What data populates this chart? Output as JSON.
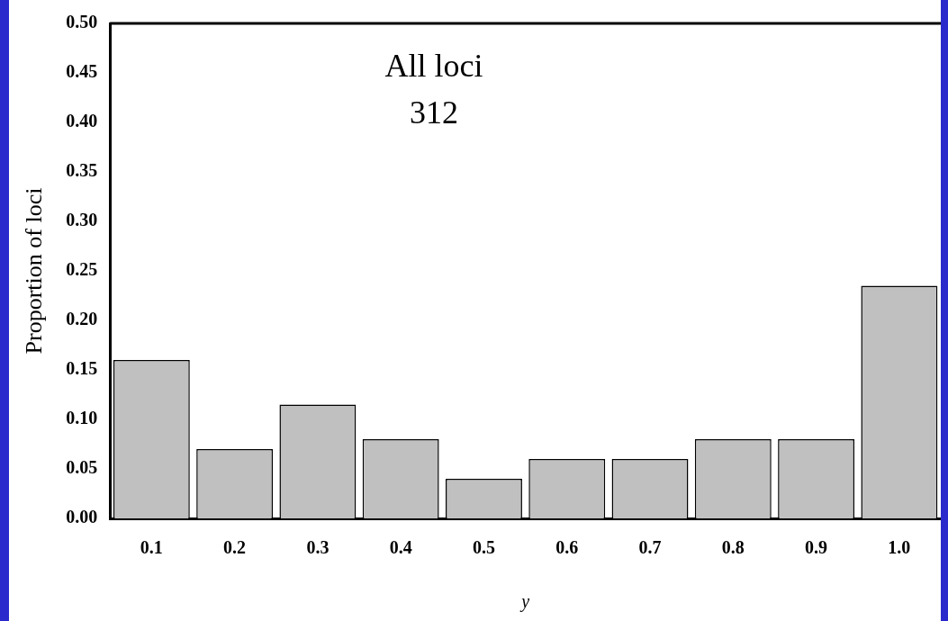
{
  "chart_data": {
    "type": "bar",
    "annotations": [
      "All loci",
      "312"
    ],
    "xlabel": "y",
    "ylabel": "Proportion of loci",
    "categories": [
      "0.1",
      "0.2",
      "0.3",
      "0.4",
      "0.5",
      "0.6",
      "0.7",
      "0.8",
      "0.9",
      "1.0"
    ],
    "values": [
      0.16,
      0.07,
      0.115,
      0.08,
      0.04,
      0.06,
      0.06,
      0.08,
      0.08,
      0.235
    ],
    "color": "#c0c0c0",
    "ylim": [
      0,
      0.5
    ],
    "yticks": [
      {
        "value": 0,
        "label": "0.00"
      },
      0.05,
      {
        "value": 0.1,
        "label": "0.10"
      },
      0.15,
      {
        "value": 0.2,
        "label": "0.20"
      },
      0.25,
      {
        "value": 0.3,
        "label": "0.30"
      },
      0.35,
      {
        "value": 0.4,
        "label": "0.40"
      },
      0.45,
      {
        "value": 0.5,
        "label": "0.50"
      }
    ],
    "grid": false,
    "legend": false
  }
}
